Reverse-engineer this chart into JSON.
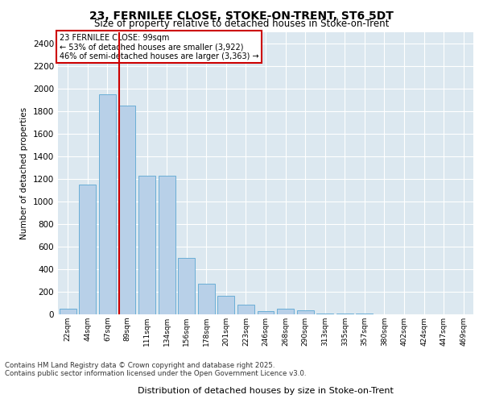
{
  "title1": "23, FERNILEE CLOSE, STOKE-ON-TRENT, ST6 5DT",
  "title2": "Size of property relative to detached houses in Stoke-on-Trent",
  "xlabel": "Distribution of detached houses by size in Stoke-on-Trent",
  "ylabel": "Number of detached properties",
  "bins": [
    "22sqm",
    "44sqm",
    "67sqm",
    "89sqm",
    "111sqm",
    "134sqm",
    "156sqm",
    "178sqm",
    "201sqm",
    "223sqm",
    "246sqm",
    "268sqm",
    "290sqm",
    "313sqm",
    "335sqm",
    "357sqm",
    "380sqm",
    "402sqm",
    "424sqm",
    "447sqm",
    "469sqm"
  ],
  "values": [
    50,
    1150,
    1950,
    1850,
    1230,
    1230,
    500,
    270,
    165,
    85,
    30,
    50,
    35,
    10,
    5,
    5,
    2,
    2,
    1,
    1,
    1
  ],
  "bar_color": "#b8d0e8",
  "bar_edgecolor": "#6baed6",
  "vline_color": "#cc0000",
  "annotation_title": "23 FERNILEE CLOSE: 99sqm",
  "annotation_line1": "← 53% of detached houses are smaller (3,922)",
  "annotation_line2": "46% of semi-detached houses are larger (3,363) →",
  "annotation_box_color": "#cc0000",
  "ylim": [
    0,
    2500
  ],
  "yticks": [
    0,
    200,
    400,
    600,
    800,
    1000,
    1200,
    1400,
    1600,
    1800,
    2000,
    2200,
    2400
  ],
  "bg_color": "#dce8f0",
  "footer1": "Contains HM Land Registry data © Crown copyright and database right 2025.",
  "footer2": "Contains public sector information licensed under the Open Government Licence v3.0."
}
